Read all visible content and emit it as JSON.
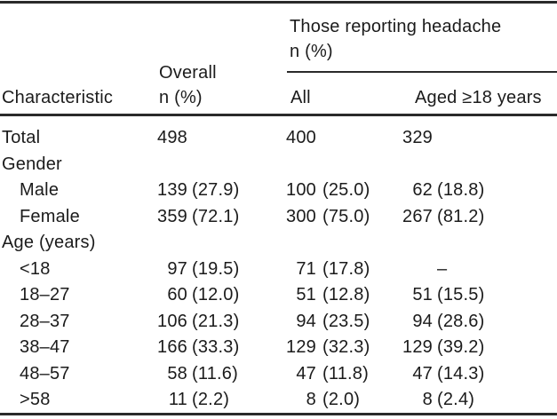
{
  "table": {
    "header": {
      "characteristic": "Characteristic",
      "overall_line1": "Overall",
      "overall_line2": "n (%)",
      "spanner_line1": "Those reporting headache",
      "spanner_line2": "n (%)",
      "col_all": "All",
      "col_aged": "Aged ≥18 years"
    },
    "rows": [
      {
        "label": "Total",
        "indent": false,
        "overall_n": "498",
        "overall_pct": "",
        "all_n": "400",
        "all_pct": "",
        "aged_n": "329",
        "aged_pct": ""
      },
      {
        "label": "Gender",
        "indent": false,
        "overall_n": "",
        "overall_pct": "",
        "all_n": "",
        "all_pct": "",
        "aged_n": "",
        "aged_pct": ""
      },
      {
        "label": "Male",
        "indent": true,
        "overall_n": "139",
        "overall_pct": "(27.9)",
        "all_n": "100",
        "all_pct": "(25.0)",
        "aged_n": "62",
        "aged_pct": "(18.8)"
      },
      {
        "label": "Female",
        "indent": true,
        "overall_n": "359",
        "overall_pct": "(72.1)",
        "all_n": "300",
        "all_pct": "(75.0)",
        "aged_n": "267",
        "aged_pct": "(81.2)"
      },
      {
        "label": "Age (years)",
        "indent": false,
        "overall_n": "",
        "overall_pct": "",
        "all_n": "",
        "all_pct": "",
        "aged_n": "",
        "aged_pct": ""
      },
      {
        "label": "<18",
        "indent": true,
        "overall_n": "97",
        "overall_pct": "(19.5)",
        "all_n": "71",
        "all_pct": "(17.8)",
        "aged_n": "",
        "aged_pct": "–"
      },
      {
        "label": "18–27",
        "indent": true,
        "overall_n": "60",
        "overall_pct": "(12.0)",
        "all_n": "51",
        "all_pct": "(12.8)",
        "aged_n": "51",
        "aged_pct": "(15.5)"
      },
      {
        "label": "28–37",
        "indent": true,
        "overall_n": "106",
        "overall_pct": "(21.3)",
        "all_n": "94",
        "all_pct": "(23.5)",
        "aged_n": "94",
        "aged_pct": "(28.6)"
      },
      {
        "label": "38–47",
        "indent": true,
        "overall_n": "166",
        "overall_pct": "(33.3)",
        "all_n": "129",
        "all_pct": "(32.3)",
        "aged_n": "129",
        "aged_pct": "(39.2)"
      },
      {
        "label": "48–57",
        "indent": true,
        "overall_n": "58",
        "overall_pct": "(11.6)",
        "all_n": "47",
        "all_pct": "(11.8)",
        "aged_n": "47",
        "aged_pct": "(14.3)"
      },
      {
        "label": ">58",
        "indent": true,
        "overall_n": "11",
        "overall_pct": "(2.2)",
        "all_n": "8",
        "all_pct": "(2.0)",
        "aged_n": "8",
        "aged_pct": "(2.4)"
      }
    ]
  },
  "colors": {
    "text": "#1b1b1b",
    "rule": "#2a2a2a",
    "background": "#ffffff"
  }
}
